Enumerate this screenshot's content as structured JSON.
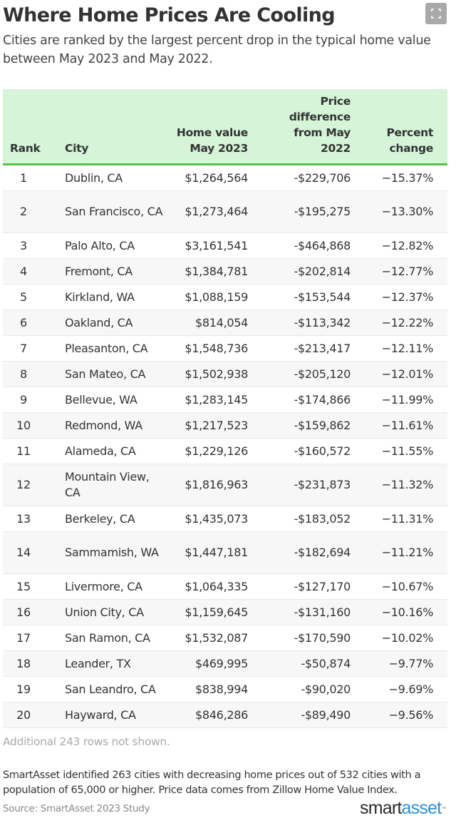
{
  "header": {
    "title": "Where Home Prices Are Cooling",
    "subtitle": "Cities are ranked by the largest percent drop in the typical home value between May 2023 and May 2022.",
    "expand_icon": "fullscreen-icon"
  },
  "table": {
    "columns": {
      "rank": "Rank",
      "city": "City",
      "home_value": "Home value May 2023",
      "price_diff": "Price difference from May 2022",
      "pct_change": "Percent change"
    },
    "rows": [
      {
        "rank": "1",
        "city": "Dublin, CA",
        "home_value": "$1,264,564",
        "price_diff": "-$229,706",
        "pct_change": "−15.37%"
      },
      {
        "rank": "2",
        "city": "San Francisco, CA",
        "home_value": "$1,273,464",
        "price_diff": "-$195,275",
        "pct_change": "−13.30%"
      },
      {
        "rank": "3",
        "city": "Palo Alto, CA",
        "home_value": "$3,161,541",
        "price_diff": "-$464,868",
        "pct_change": "−12.82%"
      },
      {
        "rank": "4",
        "city": "Fremont, CA",
        "home_value": "$1,384,781",
        "price_diff": "-$202,814",
        "pct_change": "−12.77%"
      },
      {
        "rank": "5",
        "city": "Kirkland, WA",
        "home_value": "$1,088,159",
        "price_diff": "-$153,544",
        "pct_change": "−12.37%"
      },
      {
        "rank": "6",
        "city": "Oakland, CA",
        "home_value": "$814,054",
        "price_diff": "-$113,342",
        "pct_change": "−12.22%"
      },
      {
        "rank": "7",
        "city": "Pleasanton, CA",
        "home_value": "$1,548,736",
        "price_diff": "-$213,417",
        "pct_change": "−12.11%"
      },
      {
        "rank": "8",
        "city": "San Mateo, CA",
        "home_value": "$1,502,938",
        "price_diff": "-$205,120",
        "pct_change": "−12.01%"
      },
      {
        "rank": "9",
        "city": "Bellevue, WA",
        "home_value": "$1,283,145",
        "price_diff": "-$174,866",
        "pct_change": "−11.99%"
      },
      {
        "rank": "10",
        "city": "Redmond, WA",
        "home_value": "$1,217,523",
        "price_diff": "-$159,862",
        "pct_change": "−11.61%"
      },
      {
        "rank": "11",
        "city": "Alameda, CA",
        "home_value": "$1,229,126",
        "price_diff": "-$160,572",
        "pct_change": "−11.55%"
      },
      {
        "rank": "12",
        "city": "Mountain View, CA",
        "home_value": "$1,816,963",
        "price_diff": "-$231,873",
        "pct_change": "−11.32%"
      },
      {
        "rank": "13",
        "city": "Berkeley, CA",
        "home_value": "$1,435,073",
        "price_diff": "-$183,052",
        "pct_change": "−11.31%"
      },
      {
        "rank": "14",
        "city": "Sammamish, WA",
        "home_value": "$1,447,181",
        "price_diff": "-$182,694",
        "pct_change": "−11.21%"
      },
      {
        "rank": "15",
        "city": "Livermore, CA",
        "home_value": "$1,064,335",
        "price_diff": "-$127,170",
        "pct_change": "−10.67%"
      },
      {
        "rank": "16",
        "city": "Union City, CA",
        "home_value": "$1,159,645",
        "price_diff": "-$131,160",
        "pct_change": "−10.16%"
      },
      {
        "rank": "17",
        "city": "San Ramon, CA",
        "home_value": "$1,532,087",
        "price_diff": "-$170,590",
        "pct_change": "−10.02%"
      },
      {
        "rank": "18",
        "city": "Leander, TX",
        "home_value": "$469,995",
        "price_diff": "-$50,874",
        "pct_change": "−9.77%"
      },
      {
        "rank": "19",
        "city": "San Leandro, CA",
        "home_value": "$838,994",
        "price_diff": "-$90,020",
        "pct_change": "−9.69%"
      },
      {
        "rank": "20",
        "city": "Hayward, CA",
        "home_value": "$846,286",
        "price_diff": "-$89,490",
        "pct_change": "−9.56%"
      }
    ],
    "rows_not_shown": "Additional 243 rows not shown."
  },
  "footer": {
    "note": "SmartAsset identified 263 cities with decreasing home prices out of 532 cities with a population of 65,000 or higher. Price data comes from Zillow Home Value Index.",
    "source": "Source: SmartAsset 2023 Study",
    "logo_part1": "smart",
    "logo_part2": "asset",
    "logo_tm": "™"
  },
  "colors": {
    "header_bg": "#d5f4d8",
    "header_rule": "#5fc04f",
    "stripe": "#f7f7f7",
    "logo_blue": "#2d8fd5"
  },
  "chart_data": {
    "type": "table",
    "title": "Where Home Prices Are Cooling",
    "subtitle": "Cities are ranked by the largest percent drop in the typical home value between May 2023 and May 2022.",
    "columns": [
      "Rank",
      "City",
      "Home value May 2023",
      "Price difference from May 2022",
      "Percent change"
    ],
    "rows": [
      [
        1,
        "Dublin, CA",
        1264564,
        -229706,
        -15.37
      ],
      [
        2,
        "San Francisco, CA",
        1273464,
        -195275,
        -13.3
      ],
      [
        3,
        "Palo Alto, CA",
        3161541,
        -464868,
        -12.82
      ],
      [
        4,
        "Fremont, CA",
        1384781,
        -202814,
        -12.77
      ],
      [
        5,
        "Kirkland, WA",
        1088159,
        -153544,
        -12.37
      ],
      [
        6,
        "Oakland, CA",
        814054,
        -113342,
        -12.22
      ],
      [
        7,
        "Pleasanton, CA",
        1548736,
        -213417,
        -12.11
      ],
      [
        8,
        "San Mateo, CA",
        1502938,
        -205120,
        -12.01
      ],
      [
        9,
        "Bellevue, WA",
        1283145,
        -174866,
        -11.99
      ],
      [
        10,
        "Redmond, WA",
        1217523,
        -159862,
        -11.61
      ],
      [
        11,
        "Alameda, CA",
        1229126,
        -160572,
        -11.55
      ],
      [
        12,
        "Mountain View, CA",
        1816963,
        -231873,
        -11.32
      ],
      [
        13,
        "Berkeley, CA",
        1435073,
        -183052,
        -11.31
      ],
      [
        14,
        "Sammamish, WA",
        1447181,
        -182694,
        -11.21
      ],
      [
        15,
        "Livermore, CA",
        1064335,
        -127170,
        -10.67
      ],
      [
        16,
        "Union City, CA",
        1159645,
        -131160,
        -10.16
      ],
      [
        17,
        "San Ramon, CA",
        1532087,
        -170590,
        -10.02
      ],
      [
        18,
        "Leander, TX",
        469995,
        -50874,
        -9.77
      ],
      [
        19,
        "San Leandro, CA",
        838994,
        -90020,
        -9.69
      ],
      [
        20,
        "Hayward, CA",
        846286,
        -89490,
        -9.56
      ]
    ],
    "note": "Additional 243 rows not shown.",
    "source": "Source: SmartAsset 2023 Study"
  }
}
